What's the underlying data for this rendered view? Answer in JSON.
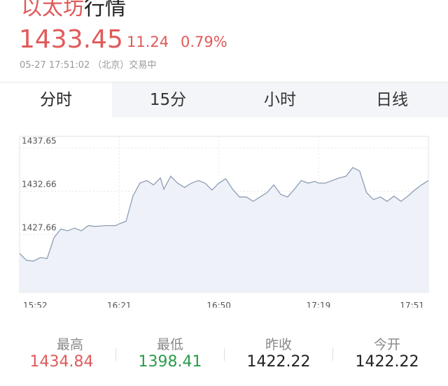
{
  "header": {
    "title_a": "以太坊",
    "title_b": "行情",
    "price": 1433.45,
    "change": 11.24,
    "change_pct": "0.79%",
    "timestamp": "05-27 17:51:02 （北京）交易中"
  },
  "tabs": [
    "分时",
    "15分",
    "小时",
    "日线"
  ],
  "chart_data": {
    "type": "line",
    "x": [
      "15:52",
      "15:54",
      "15:56",
      "15:58",
      "16:00",
      "16:02",
      "16:04",
      "16:06",
      "16:08",
      "16:10",
      "16:12",
      "16:14",
      "16:17",
      "16:20",
      "16:21",
      "16:23",
      "16:25",
      "16:27",
      "16:29",
      "16:31",
      "16:33",
      "16:34",
      "16:36",
      "16:38",
      "16:40",
      "16:42",
      "16:44",
      "16:46",
      "16:48",
      "16:50",
      "16:52",
      "16:54",
      "16:56",
      "16:58",
      "17:00",
      "17:02",
      "17:04",
      "17:06",
      "17:08",
      "17:10",
      "17:12",
      "17:14",
      "17:16",
      "17:18",
      "17:19",
      "17:21",
      "17:23",
      "17:25",
      "17:27",
      "17:29",
      "17:31",
      "17:33",
      "17:35",
      "17:37",
      "17:39",
      "17:41",
      "17:43",
      "17:45",
      "17:47",
      "17:49",
      "17:51"
    ],
    "values": [
      1425.5,
      1424.7,
      1424.6,
      1425.0,
      1424.9,
      1427.3,
      1428.3,
      1428.1,
      1428.4,
      1428.1,
      1428.7,
      1428.6,
      1428.7,
      1428.7,
      1428.9,
      1429.2,
      1432.1,
      1433.6,
      1433.9,
      1433.4,
      1434.2,
      1432.9,
      1434.4,
      1433.6,
      1433.1,
      1433.6,
      1433.9,
      1433.6,
      1432.8,
      1433.6,
      1434.1,
      1432.9,
      1432.0,
      1432.0,
      1431.5,
      1432.0,
      1432.5,
      1433.4,
      1432.3,
      1432.0,
      1432.9,
      1433.9,
      1433.6,
      1433.8,
      1433.6,
      1433.6,
      1433.9,
      1434.2,
      1434.4,
      1435.4,
      1435.0,
      1432.5,
      1431.7,
      1432.0,
      1431.5,
      1432.1,
      1431.5,
      1432.1,
      1432.8,
      1433.4,
      1433.9
    ],
    "color": "#8d9db5",
    "ylim": [
      1421.0,
      1439.0
    ],
    "yticks": [
      1437.65,
      1432.66,
      1427.66,
      1422.67
    ],
    "xticks": [
      "15:52",
      "16:21",
      "16:50",
      "17:19",
      "17:51"
    ],
    "grid": true
  },
  "stats": [
    {
      "label": "最高",
      "value": 1434.84,
      "color": "#e05a5a"
    },
    {
      "label": "最低",
      "value": 1398.41,
      "color": "#2a9d4a"
    },
    {
      "label": "昨收",
      "value": 1422.22,
      "color": "#222222"
    },
    {
      "label": "今开",
      "value": 1422.22,
      "color": "#222222"
    }
  ]
}
